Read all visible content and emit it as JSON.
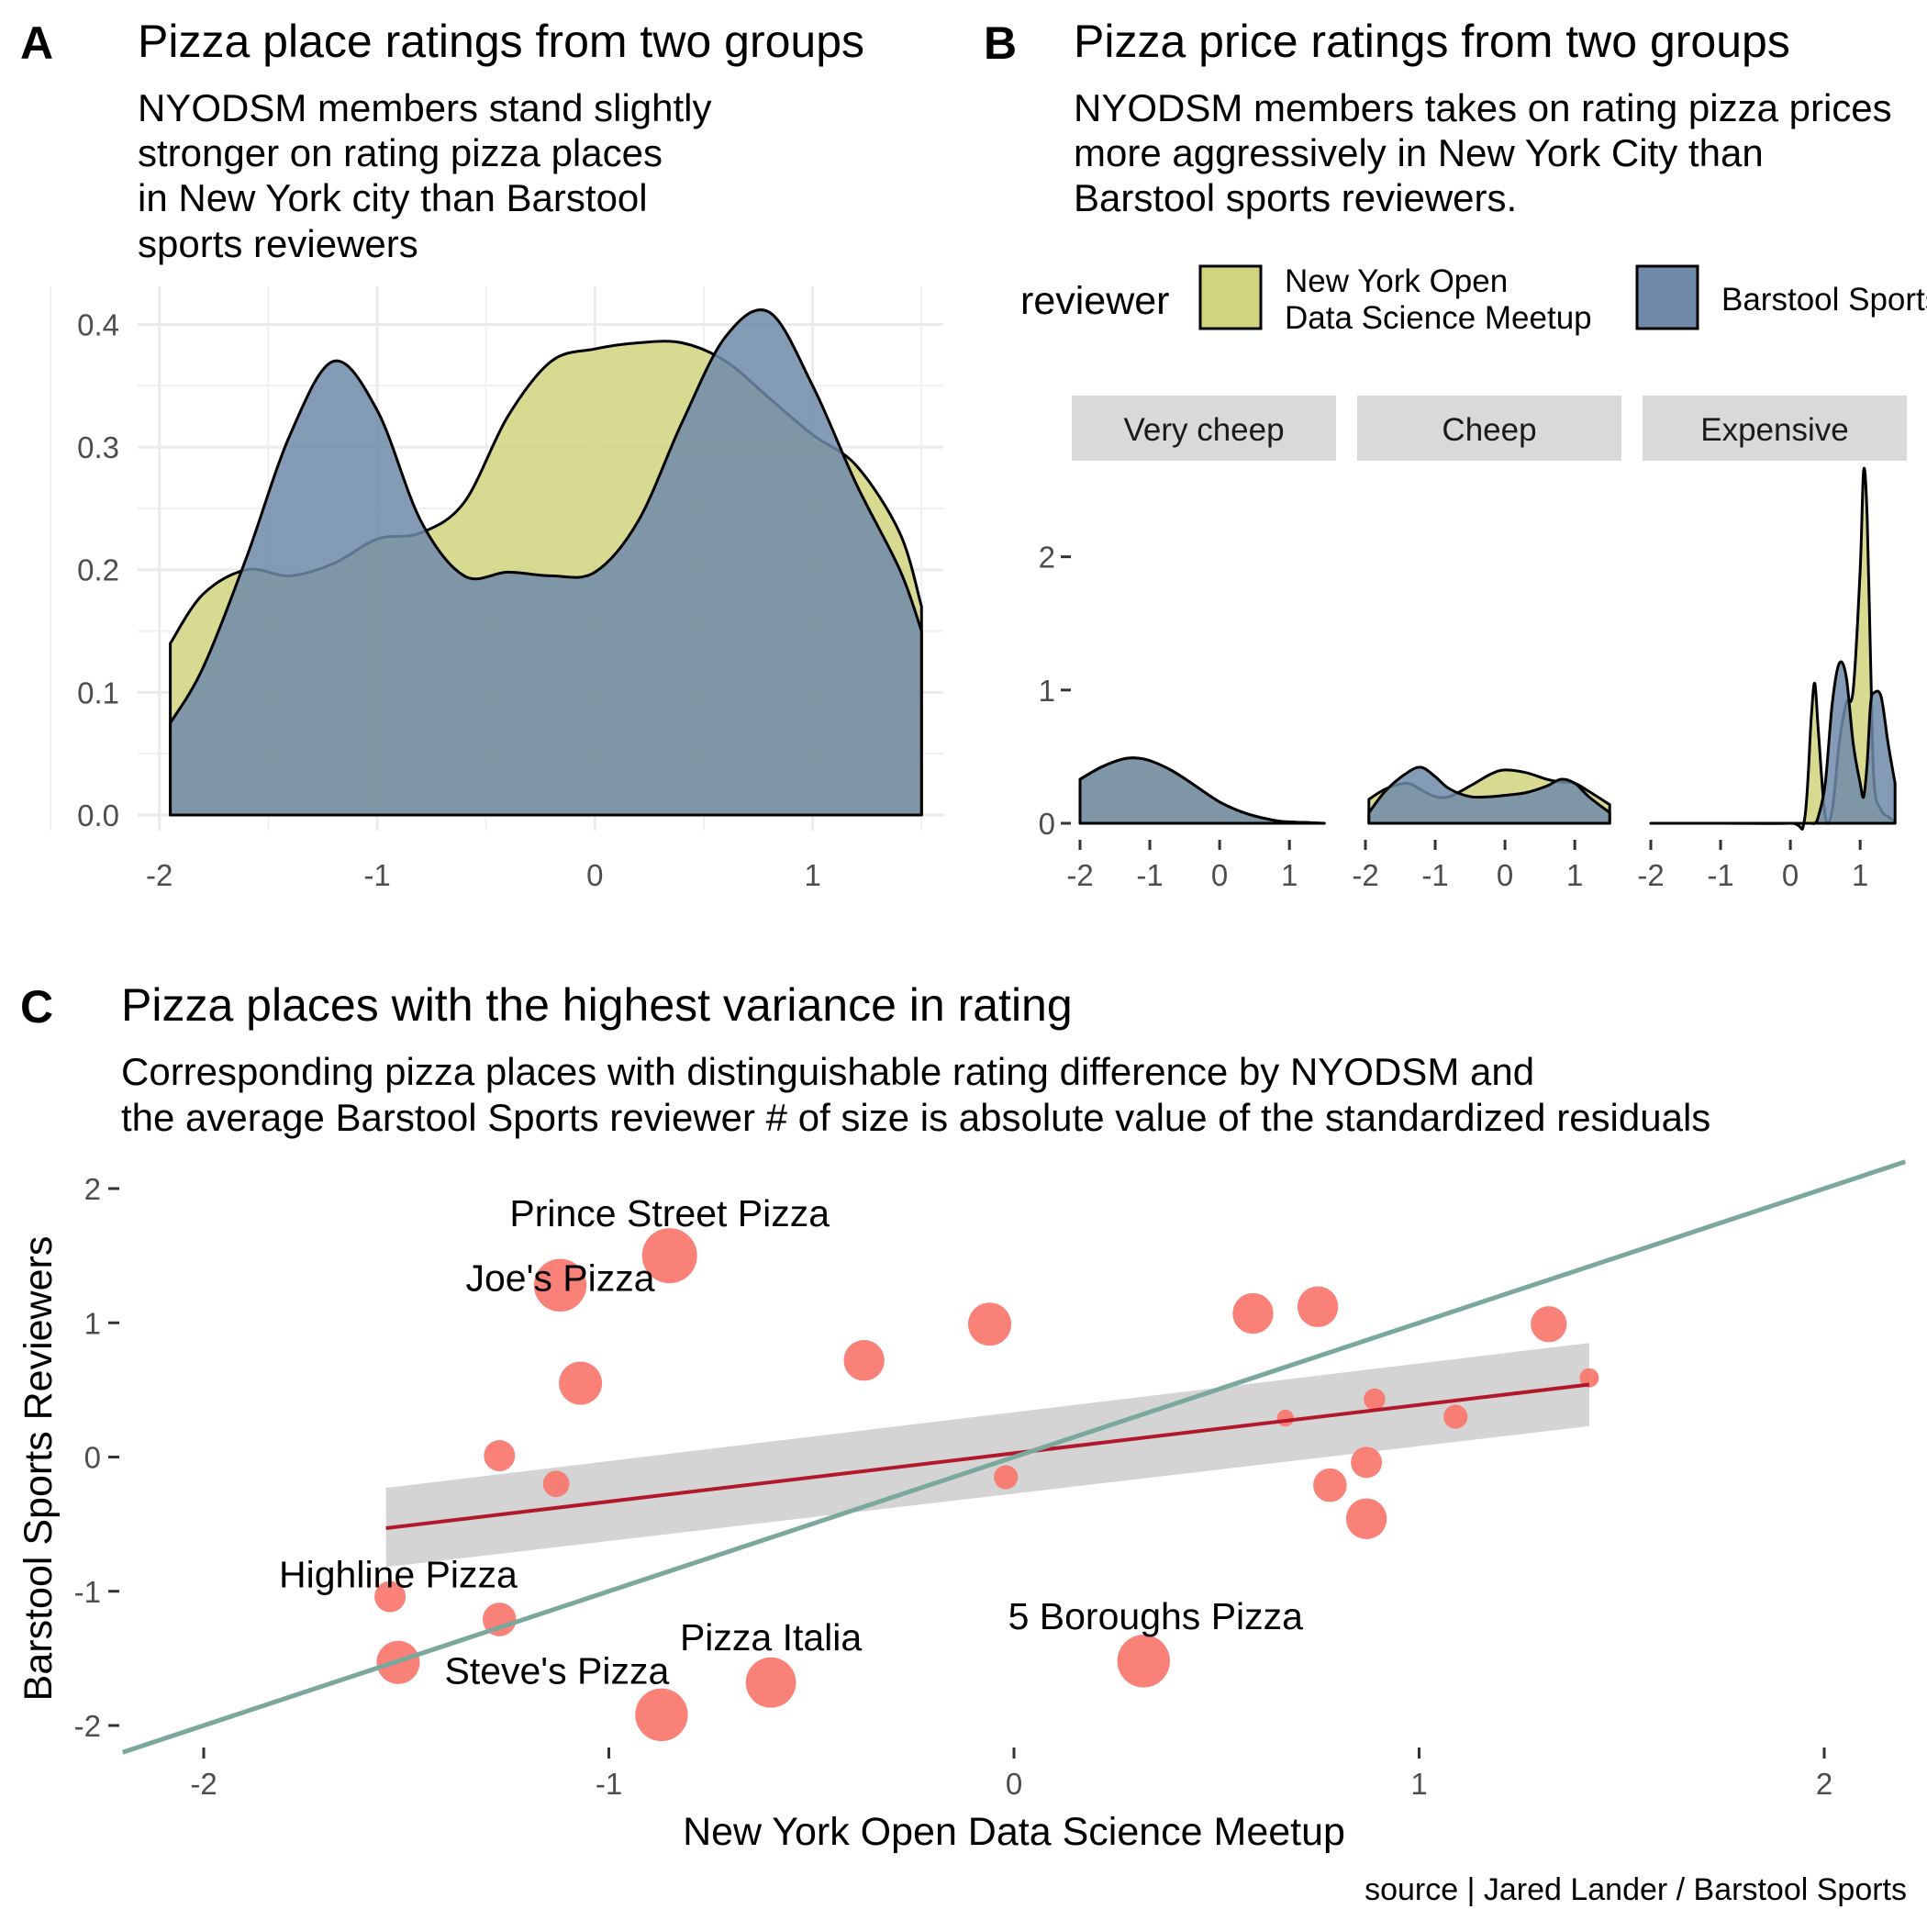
{
  "panels": {
    "a": {
      "letter": "A",
      "title": "Pizza place ratings from two groups",
      "subtitle": [
        "NYODSM members stand slightly",
        "stronger on rating pizza places",
        "in New York city than Barstool",
        "sports reviewers"
      ]
    },
    "b": {
      "letter": "B",
      "title": "Pizza price ratings from two groups",
      "subtitle": [
        "NYODSM members takes on rating pizza prices",
        "more aggressively in New York City than",
        "Barstool sports reviewers."
      ]
    },
    "c": {
      "letter": "C",
      "title": "Pizza places with the highest variance in rating",
      "subtitle": [
        "Corresponding pizza places with distinguishable rating difference by NYODSM and",
        "the average Barstool Sports reviewer # of size is absolute value of the standardized residuals"
      ]
    }
  },
  "legend": {
    "title": "reviewer",
    "items": [
      {
        "label": [
          "New York Open",
          "Data Science Meetup"
        ],
        "color": "#d1d37f"
      },
      {
        "label": [
          "Barstool Sports"
        ],
        "color": "#6f8aa8"
      }
    ]
  },
  "caption": "source | Jared Lander / Barstool Sports",
  "colors": {
    "nyodsm": "#d1d37f",
    "barstool": "#6f8aa8",
    "points": "#f8766d",
    "fit_line": "#b2182b",
    "ribbon": "#cccccc",
    "identity_line": "#7aa89c"
  },
  "chart_data": [
    {
      "id": "A",
      "type": "area",
      "xlim": [
        -2.1,
        1.6
      ],
      "ylim": [
        0,
        0.44
      ],
      "x_ticks": [
        -2,
        -1,
        0,
        1
      ],
      "y_ticks": [
        0.0,
        0.1,
        0.2,
        0.3,
        0.4
      ],
      "x_tick_labels": [
        "-2",
        "-1",
        "0",
        "1"
      ],
      "y_tick_labels": [
        "0.0",
        "0.1",
        "0.2",
        "0.3",
        "0.4"
      ],
      "grid": true,
      "x": [
        -1.95,
        -1.8,
        -1.6,
        -1.4,
        -1.2,
        -1.0,
        -0.8,
        -0.6,
        -0.4,
        -0.2,
        0.0,
        0.2,
        0.4,
        0.6,
        0.8,
        1.0,
        1.2,
        1.4,
        1.5
      ],
      "series": [
        {
          "name": "New York Open Data Science Meetup",
          "values": [
            0.14,
            0.18,
            0.2,
            0.195,
            0.205,
            0.225,
            0.23,
            0.255,
            0.325,
            0.37,
            0.38,
            0.385,
            0.385,
            0.37,
            0.34,
            0.31,
            0.285,
            0.23,
            0.17
          ]
        },
        {
          "name": "Barstool Sports",
          "values": [
            0.075,
            0.12,
            0.21,
            0.31,
            0.37,
            0.33,
            0.24,
            0.195,
            0.198,
            0.195,
            0.198,
            0.24,
            0.32,
            0.39,
            0.41,
            0.35,
            0.27,
            0.2,
            0.15
          ]
        }
      ]
    },
    {
      "id": "B",
      "type": "area",
      "facets": [
        "Very cheep",
        "Cheep",
        "Expensive"
      ],
      "xlim": [
        -2.0,
        1.55
      ],
      "ylim": [
        0,
        2.7
      ],
      "x_ticks": [
        -2,
        -1,
        0,
        1
      ],
      "y_ticks": [
        0,
        1,
        2
      ],
      "x_tick_labels": [
        "-2",
        "-1",
        "0",
        "1"
      ],
      "y_tick_labels": [
        "0",
        "1",
        "2"
      ],
      "grid": false,
      "panels": [
        {
          "facet": "Very cheep",
          "x": [
            -2.0,
            -1.7,
            -1.4,
            -1.2,
            -1.0,
            -0.7,
            -0.4,
            0.0,
            0.4,
            0.8,
            1.0,
            1.5
          ],
          "series": [
            {
              "name": "New York Open Data Science Meetup",
              "values": [
                0.33,
                0.42,
                0.48,
                0.49,
                0.47,
                0.4,
                0.3,
                0.16,
                0.07,
                0.02,
                0.01,
                0.0
              ]
            },
            {
              "name": "Barstool Sports",
              "values": [
                0.33,
                0.42,
                0.48,
                0.49,
                0.47,
                0.4,
                0.3,
                0.16,
                0.07,
                0.02,
                0.01,
                0.0
              ]
            }
          ]
        },
        {
          "facet": "Cheep",
          "x": [
            -1.95,
            -1.7,
            -1.4,
            -1.2,
            -1.0,
            -0.8,
            -0.5,
            -0.2,
            0.0,
            0.3,
            0.6,
            0.8,
            1.0,
            1.2,
            1.5
          ],
          "series": [
            {
              "name": "New York Open Data Science Meetup",
              "values": [
                0.18,
                0.26,
                0.3,
                0.25,
                0.2,
                0.2,
                0.28,
                0.37,
                0.4,
                0.38,
                0.33,
                0.31,
                0.3,
                0.24,
                0.14
              ]
            },
            {
              "name": "Barstool Sports",
              "values": [
                0.08,
                0.25,
                0.38,
                0.42,
                0.35,
                0.26,
                0.2,
                0.2,
                0.21,
                0.23,
                0.28,
                0.33,
                0.3,
                0.2,
                0.08
              ]
            }
          ]
        },
        {
          "facet": "Expensive",
          "x": [
            -2.0,
            -1.0,
            0.0,
            0.2,
            0.3,
            0.35,
            0.4,
            0.5,
            0.6,
            0.7,
            0.8,
            0.9,
            1.0,
            1.05,
            1.1,
            1.15,
            1.2,
            1.3,
            1.4,
            1.5
          ],
          "series": [
            {
              "name": "New York Open Data Science Meetup",
              "values": [
                0.0,
                0.0,
                0.0,
                0.02,
                0.8,
                1.05,
                0.7,
                0.05,
                0.1,
                0.6,
                0.9,
                1.0,
                1.9,
                2.65,
                2.3,
                1.2,
                0.3,
                0.1,
                0.05,
                0.01
              ]
            },
            {
              "name": "Barstool Sports",
              "values": [
                0.0,
                0.0,
                0.0,
                0.0,
                0.0,
                0.0,
                0.05,
                0.3,
                0.9,
                1.2,
                1.1,
                0.6,
                0.3,
                0.2,
                0.45,
                0.9,
                0.98,
                0.95,
                0.6,
                0.3
              ]
            }
          ]
        }
      ]
    },
    {
      "id": "C",
      "type": "scatter",
      "xlabel": "New York Open Data Science Meetup",
      "ylabel": "Barstool Sports Reviewers",
      "xlim": [
        -2.2,
        2.2
      ],
      "ylim": [
        -2.22,
        2.18
      ],
      "x_ticks": [
        -2,
        -1,
        0,
        1,
        2
      ],
      "y_ticks": [
        -2,
        -1,
        0,
        1,
        2
      ],
      "x_tick_labels": [
        "-2",
        "-1",
        "0",
        "1",
        "2"
      ],
      "y_tick_labels": [
        "-2",
        "-1",
        "0",
        "1",
        "2"
      ],
      "grid": false,
      "points": [
        {
          "x": -0.85,
          "y": 1.5,
          "size": 2.0,
          "label": "Prince Street Pizza"
        },
        {
          "x": -1.12,
          "y": 1.28,
          "size": 1.9,
          "label": "Joe's Pizza"
        },
        {
          "x": -1.52,
          "y": -1.53,
          "size": 1.5,
          "label": "Highline Pizza"
        },
        {
          "x": -0.6,
          "y": -1.68,
          "size": 1.8,
          "label": "Pizza Italia"
        },
        {
          "x": -0.87,
          "y": -1.92,
          "size": 1.9,
          "label": "Steve's Pizza"
        },
        {
          "x": 0.32,
          "y": -1.52,
          "size": 1.9,
          "label": "5 Boroughs Pizza"
        },
        {
          "x": -1.07,
          "y": 0.55,
          "size": 1.5,
          "label": ""
        },
        {
          "x": -0.37,
          "y": 0.72,
          "size": 1.4,
          "label": ""
        },
        {
          "x": -0.06,
          "y": 0.99,
          "size": 1.5,
          "label": ""
        },
        {
          "x": 0.59,
          "y": 1.07,
          "size": 1.4,
          "label": ""
        },
        {
          "x": 0.75,
          "y": 1.12,
          "size": 1.4,
          "label": ""
        },
        {
          "x": 1.32,
          "y": 0.99,
          "size": 1.2,
          "label": ""
        },
        {
          "x": -1.27,
          "y": 0.01,
          "size": 1.0,
          "label": ""
        },
        {
          "x": -1.13,
          "y": -0.2,
          "size": 0.8,
          "label": ""
        },
        {
          "x": -1.54,
          "y": -1.04,
          "size": 1.0,
          "label": ""
        },
        {
          "x": -1.27,
          "y": -1.21,
          "size": 1.1,
          "label": ""
        },
        {
          "x": -0.02,
          "y": -0.15,
          "size": 0.7,
          "label": ""
        },
        {
          "x": 0.67,
          "y": 0.29,
          "size": 0.4,
          "label": ""
        },
        {
          "x": 0.89,
          "y": 0.43,
          "size": 0.6,
          "label": ""
        },
        {
          "x": 1.09,
          "y": 0.3,
          "size": 0.7,
          "label": ""
        },
        {
          "x": 1.42,
          "y": 0.59,
          "size": 0.5,
          "label": ""
        },
        {
          "x": 0.87,
          "y": -0.04,
          "size": 1.0,
          "label": ""
        },
        {
          "x": 0.78,
          "y": -0.21,
          "size": 1.1,
          "label": ""
        },
        {
          "x": 0.87,
          "y": -0.46,
          "size": 1.4,
          "label": ""
        }
      ],
      "fit_line": {
        "x": [
          -1.55,
          1.42
        ],
        "y": [
          -0.53,
          0.54
        ],
        "ribbon_lower": [
          -0.82,
          0.23
        ],
        "ribbon_upper": [
          -0.23,
          0.85
        ]
      },
      "identity_line": {
        "x": [
          -2.2,
          2.2
        ],
        "y": [
          -2.2,
          2.2
        ]
      }
    }
  ]
}
